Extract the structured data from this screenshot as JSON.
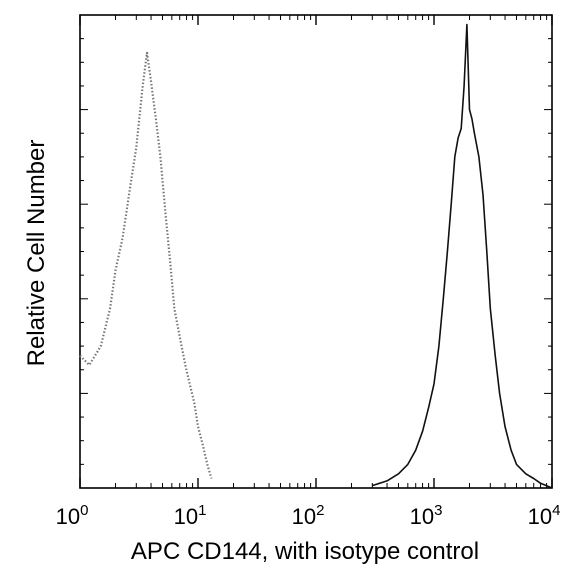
{
  "chart_data": {
    "type": "area",
    "title": "",
    "xlabel": "APC CD144, with isotype control",
    "ylabel": "Relative Cell Number",
    "x_scale": "log",
    "xlim": [
      1,
      10000
    ],
    "ylim": [
      0,
      100
    ],
    "x_ticks": [
      {
        "value": 1,
        "base": "10",
        "exp": "0"
      },
      {
        "value": 10,
        "base": "10",
        "exp": "1"
      },
      {
        "value": 100,
        "base": "10",
        "exp": "2"
      },
      {
        "value": 1000,
        "base": "10",
        "exp": "3"
      },
      {
        "value": 10000,
        "base": "10",
        "exp": "4"
      }
    ],
    "grid": false,
    "legend": false,
    "series": [
      {
        "role": "isotype control",
        "style": "dotted",
        "color": "#777777",
        "x": [
          1.0,
          1.2,
          1.5,
          1.8,
          2.0,
          2.3,
          2.6,
          3.0,
          3.4,
          3.7,
          4.0,
          4.4,
          4.8,
          5.3,
          5.8,
          6.3,
          7.0,
          7.8,
          8.5,
          9.3,
          10.0,
          11.0,
          12.0,
          13.0
        ],
        "y": [
          28,
          26,
          30,
          38,
          46,
          53,
          62,
          72,
          85,
          92,
          86,
          78,
          70,
          58,
          48,
          38,
          32,
          26,
          22,
          18,
          13,
          9,
          5,
          2
        ]
      },
      {
        "role": "CD144",
        "style": "solid",
        "color": "#111111",
        "x": [
          300,
          400,
          500,
          600,
          700,
          800,
          900,
          1000,
          1100,
          1200,
          1300,
          1400,
          1500,
          1600,
          1700,
          1800,
          1900,
          2000,
          2100,
          2200,
          2400,
          2600,
          2800,
          3000,
          3300,
          3600,
          4000,
          4500,
          5000,
          6000,
          7000,
          8000,
          10000
        ],
        "y": [
          0.5,
          1.5,
          3,
          5,
          8,
          12,
          17,
          22,
          30,
          40,
          50,
          60,
          70,
          74,
          76,
          85,
          98,
          80,
          78,
          75,
          70,
          62,
          50,
          38,
          28,
          20,
          13,
          8,
          5,
          3,
          2,
          1,
          0
        ]
      }
    ]
  }
}
